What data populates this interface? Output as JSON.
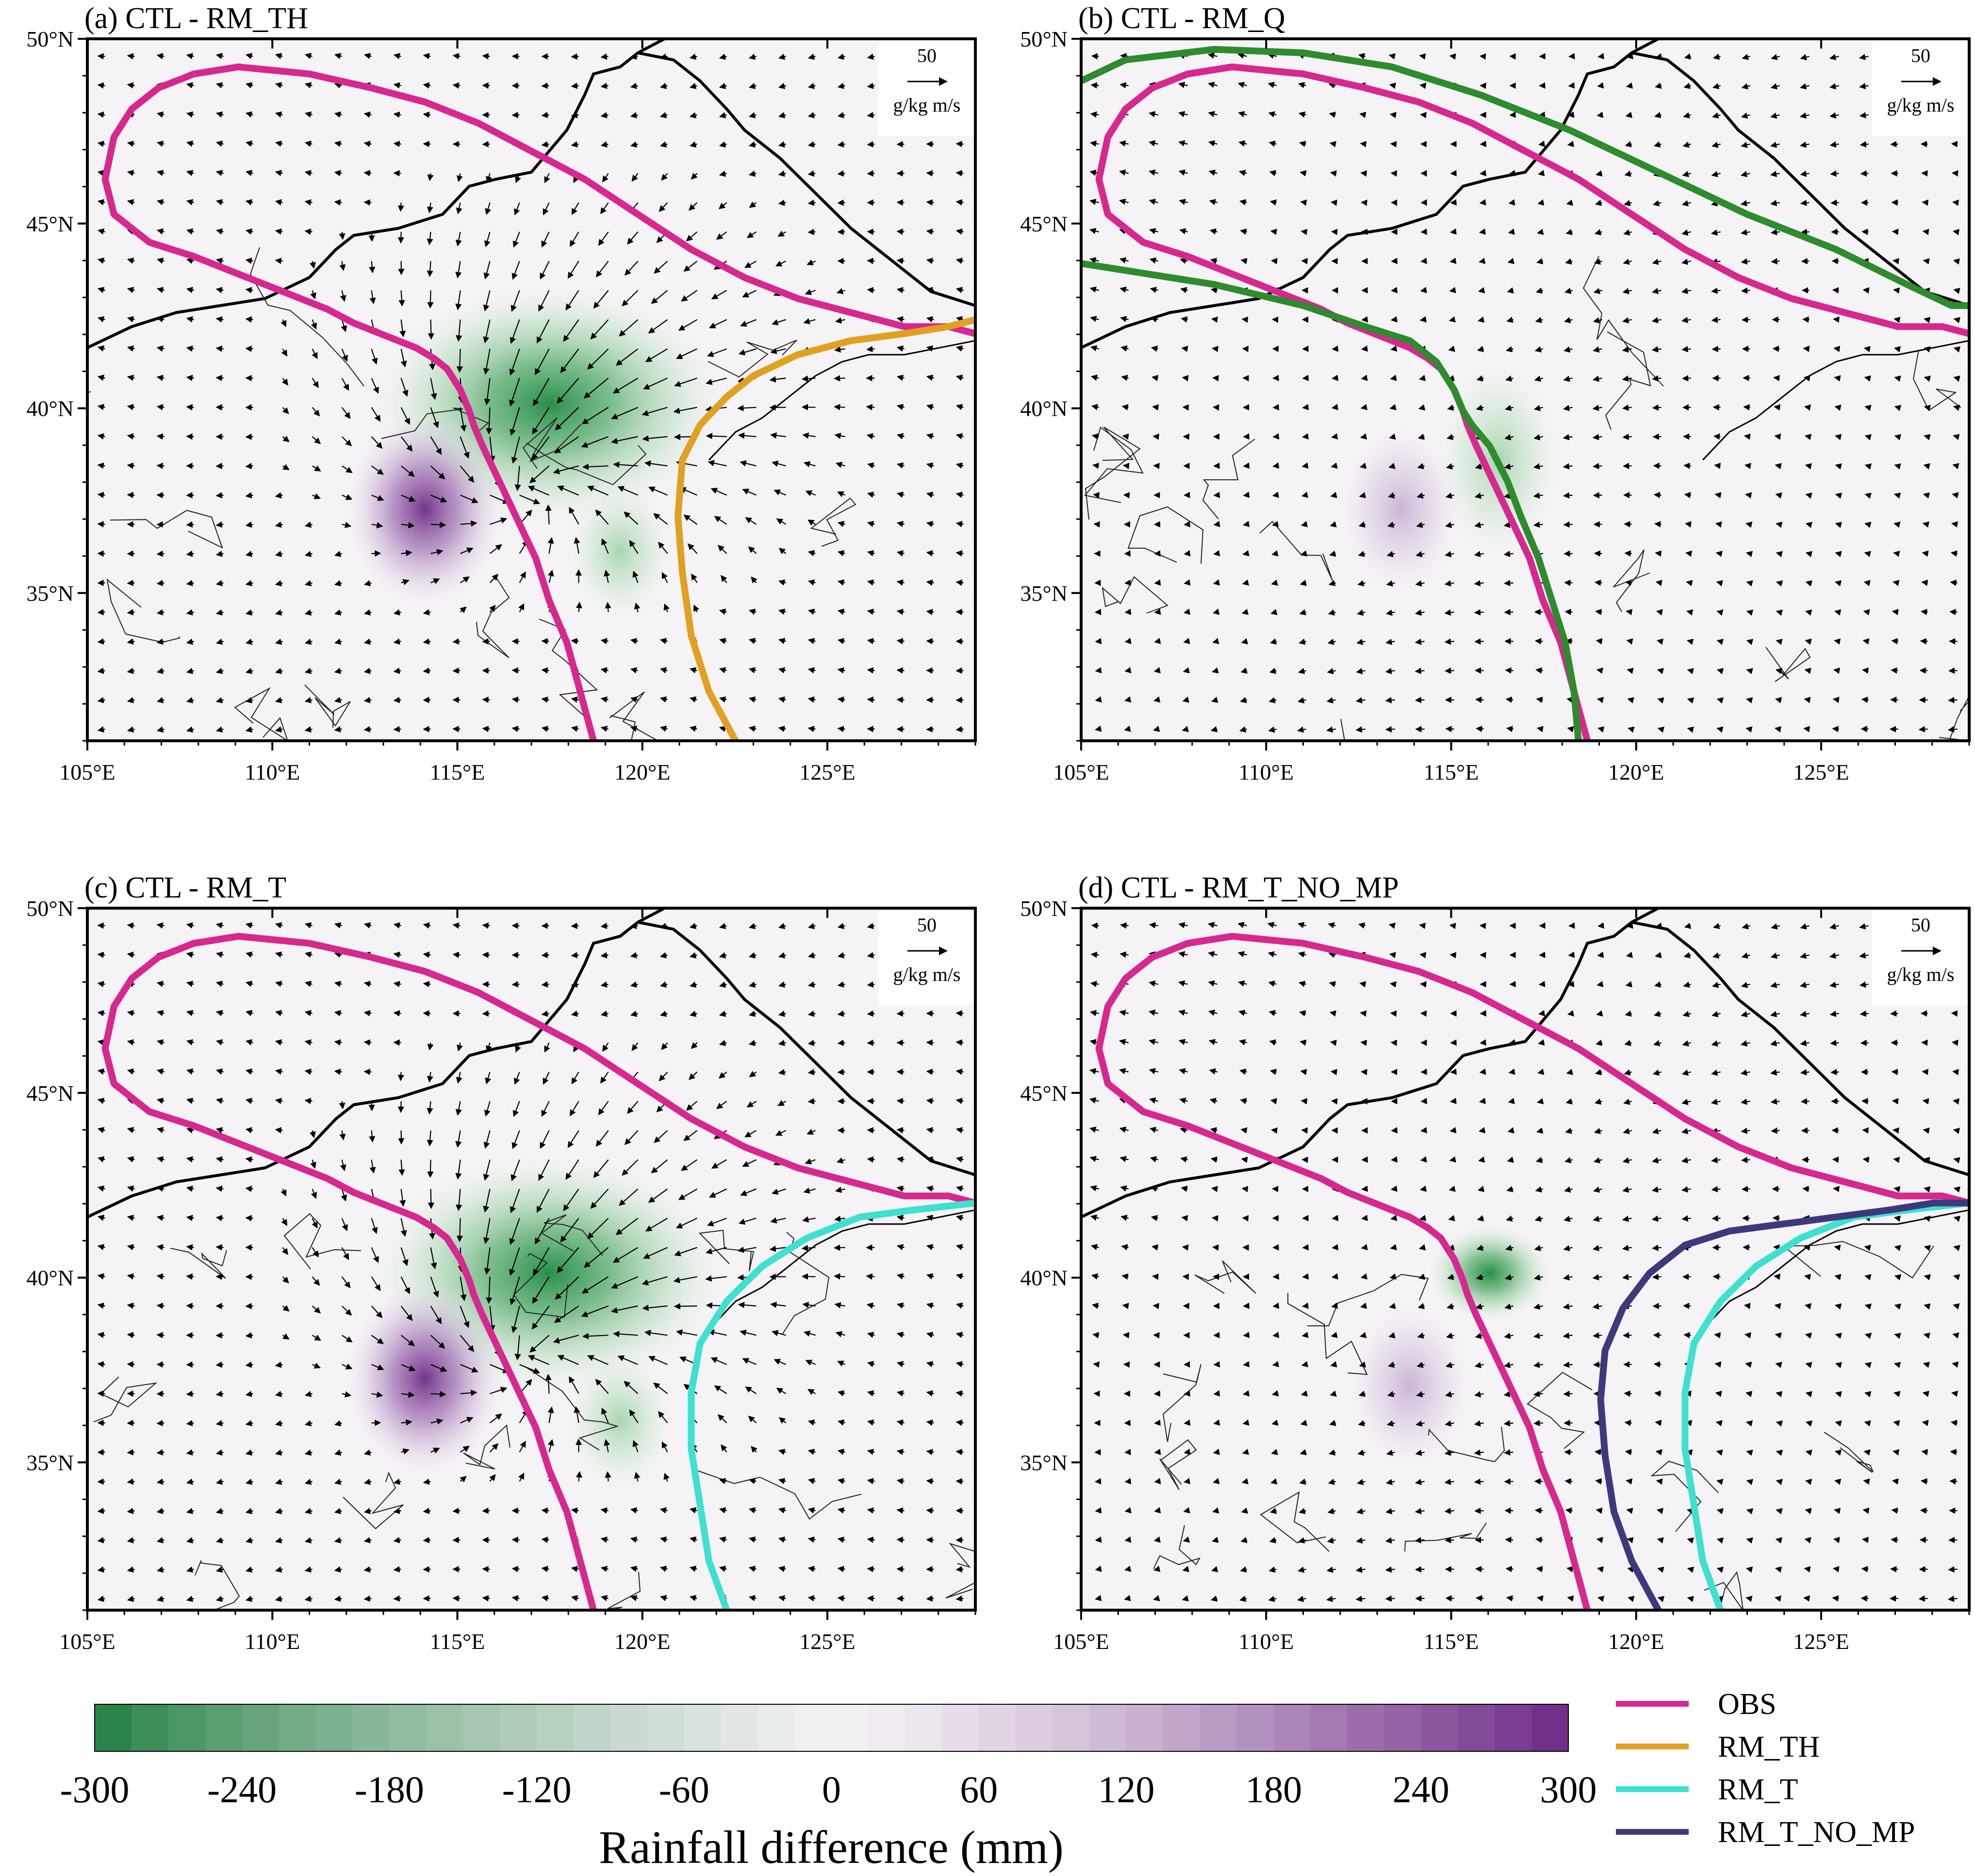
{
  "panels": [
    {
      "id": "a",
      "title": "(a) CTL - RM_TH",
      "lines": [
        "OBS",
        "RM_TH"
      ],
      "wind": "strong"
    },
    {
      "id": "b",
      "title": "(b) CTL - RM_Q",
      "lines": [
        "OBS",
        "RM_Q"
      ],
      "wind": "weak"
    },
    {
      "id": "c",
      "title": "(c) CTL - RM_T",
      "lines": [
        "OBS",
        "RM_T"
      ],
      "wind": "strong"
    },
    {
      "id": "d",
      "title": "(d) CTL - RM_T_NO_MP",
      "lines": [
        "OBS",
        "RM_T",
        "RM_T_NO_MP"
      ],
      "wind": "weak"
    }
  ],
  "map": {
    "lon_range": [
      105,
      129
    ],
    "lat_range": [
      31,
      50
    ],
    "lon_ticks": [
      "105°E",
      "110°E",
      "115°E",
      "120°E",
      "125°E"
    ],
    "lat_ticks": [
      "35°N",
      "40°N",
      "45°N",
      "50°N"
    ],
    "ref_vector_value": "50",
    "ref_vector_unit": "g/kg m/s"
  },
  "colorbar": {
    "title": "Rainfall difference (mm)",
    "ticks": [
      "-300",
      "-240",
      "-180",
      "-120",
      "-60",
      "0",
      "60",
      "120",
      "180",
      "240",
      "300"
    ],
    "range": [
      -300,
      300
    ],
    "low_color": "#1a7a3a",
    "mid_color": "#f4f2f4",
    "high_color": "#6e2a86"
  },
  "legend": [
    {
      "label": "OBS",
      "color": "#d6288f"
    },
    {
      "label": "RM_TH",
      "color": "#e0a020"
    },
    {
      "label": "RM_T",
      "color": "#3ee0d0"
    },
    {
      "label": "RM_T_NO_MP",
      "color": "#3d3a7c"
    }
  ],
  "line_colors": {
    "OBS": "#d6288f",
    "RM_TH": "#e0a020",
    "RM_Q": "#2e8b2e",
    "RM_T": "#3ee0d0",
    "RM_T_NO_MP": "#3d3a7c"
  }
}
